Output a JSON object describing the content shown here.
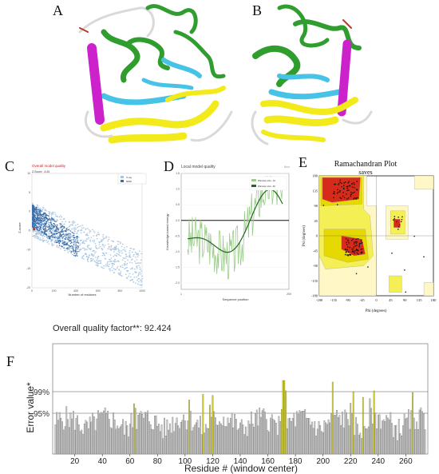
{
  "panels": {
    "a": "A",
    "b": "B",
    "c": "C",
    "d": "D",
    "e": "E",
    "f": "F"
  },
  "panel_c": {
    "title": "Overall model quality",
    "zscore": "Z-Score: -4.61",
    "legend": [
      "X-ray",
      "NMR"
    ],
    "xlabel": "Number of residues",
    "ylabel": "Z-score",
    "xticks": [
      "0",
      "200",
      "400",
      "600",
      "800",
      "1000"
    ],
    "yticks": [
      "10",
      "5",
      "0",
      "-5",
      "-10",
      "-15",
      "-20"
    ]
  },
  "panel_d": {
    "title": "Local model quality",
    "legend": [
      "Window size: 10",
      "Window size: 40"
    ],
    "xlabel": "Sequence position",
    "ylabel": "Knowledge-based energy",
    "yticks": [
      "1.5",
      "1.0",
      "0.5",
      "0.0",
      "-0.5",
      "-1.0",
      "-1.5",
      "-2.0"
    ],
    "xticks": [
      "1",
      "200"
    ],
    "corner": "Next"
  },
  "panel_e": {
    "title": "Ramachandran Plot",
    "subtitle": "saves",
    "xlabel": "Phi (degrees)",
    "ylabel": "Psi (degrees)",
    "xticks": [
      "-180",
      "-135",
      "-90",
      "-45",
      "0",
      "45",
      "90",
      "135",
      "180"
    ],
    "yticks": [
      "180",
      "135",
      "90",
      "45",
      "0",
      "-45",
      "-90",
      "-135",
      "-180"
    ]
  },
  "panel_f": {
    "overall_label": "Overall quality factor**: 92.424",
    "ylabel": "Error value*",
    "xlabel": "Residue # (window center)",
    "y_thresholds": [
      "99%",
      "95%"
    ],
    "xticks": [
      "20",
      "40",
      "60",
      "80",
      "100",
      "120",
      "140",
      "160",
      "180",
      "200",
      "220",
      "240",
      "260"
    ]
  },
  "colors": {
    "green": "#2f9e2f",
    "cyan": "#46c3e6",
    "magenta": "#cc22cc",
    "yellow": "#f2ea1a",
    "xray": "#a9c4e0",
    "nmr": "#3d6ea8",
    "bar_gray": "#cfcfcf",
    "bar_yellow": "#d9d62a"
  },
  "chart_data": [
    {
      "type": "bar",
      "panel": "F",
      "xlabel": "Residue # (window center)",
      "ylabel": "Error value*",
      "thresholds": {
        "99%": 99,
        "95%": 95
      },
      "highlighted_residues": [
        63,
        64,
        103,
        113,
        118,
        120,
        170,
        171,
        172,
        173,
        207,
        220,
        222,
        229,
        234,
        237,
        265
      ],
      "xlim": [
        4,
        276
      ]
    }
  ]
}
